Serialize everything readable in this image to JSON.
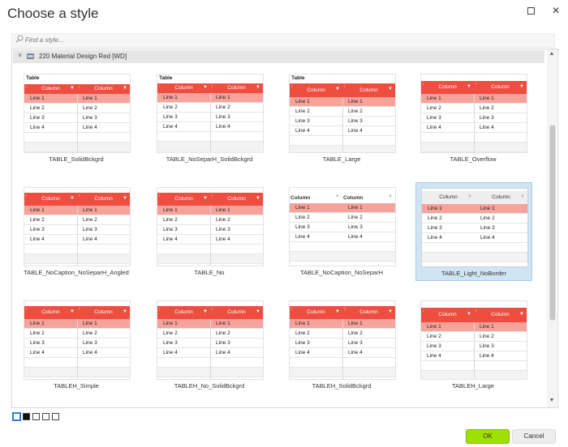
{
  "window": {
    "title": "Choose a style"
  },
  "search": {
    "placeholder": "Find a style..."
  },
  "group": {
    "label": "220 Material Design Red [WD]"
  },
  "table_text": {
    "caption": "Table",
    "column": "Column",
    "rows": [
      "Line 1",
      "Line 2",
      "Line 3",
      "Line 4"
    ]
  },
  "styles": [
    {
      "name": "TABLE_SolidBckgrd"
    },
    {
      "name": "TABLE_NoSeparH_SolidBckgrd"
    },
    {
      "name": "TABLE_Large"
    },
    {
      "name": "TABLE_Overflow"
    },
    {
      "name": "TABLE_NoCaption_NoSeparH_Angled"
    },
    {
      "name": "TABLE_No"
    },
    {
      "name": "TABLE_NoCaption_NoSeparH"
    },
    {
      "name": "TABLE_Light_NoBorder",
      "selected": true
    },
    {
      "name": "TABLEH_Simple"
    },
    {
      "name": "TABLEH_No_SolidBckgrd"
    },
    {
      "name": "TABLEH_SolidBckgrd"
    },
    {
      "name": "TABLEH_Large"
    }
  ],
  "pager": {
    "pages": 5,
    "active": 1
  },
  "buttons": {
    "ok": "OK",
    "cancel": "Cancel"
  },
  "colors": {
    "header_red": "#f04d41",
    "selected_row": "#f5a39b",
    "selected_card": "#cfe5f3",
    "ok_green": "#a0e000"
  },
  "icons": {
    "search": "search-icon",
    "chevron": "chevron-down-icon",
    "folder": "folder-icon",
    "filter": "filter-icon",
    "maximize": "maximize-icon",
    "close": "close-icon"
  }
}
